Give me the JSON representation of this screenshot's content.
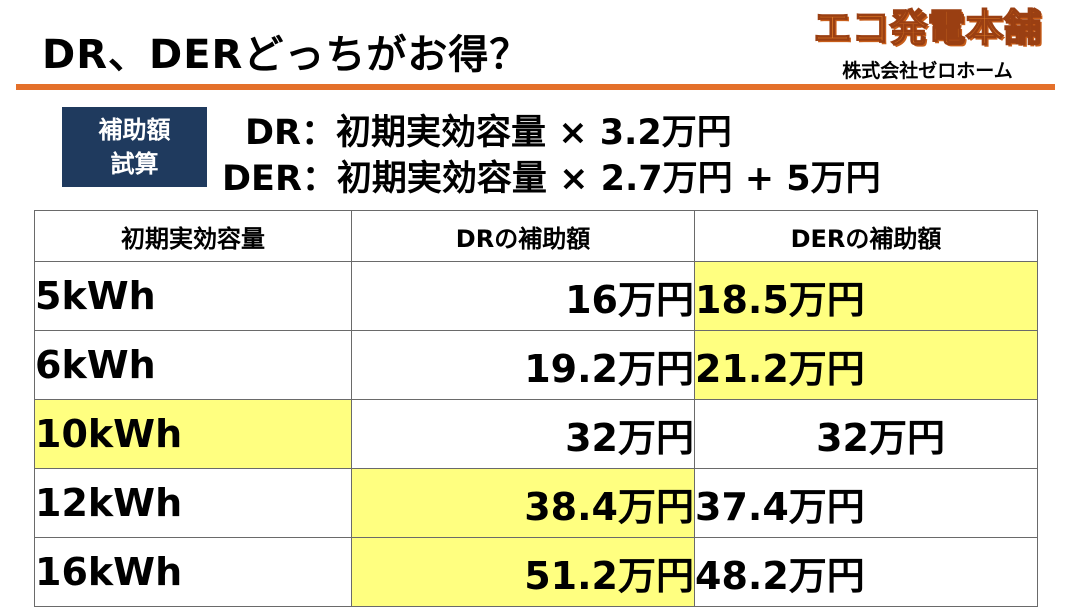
{
  "header": {
    "title": "DR、DERどっちがお得？",
    "logo_main": "エコ発電本舗",
    "logo_sub": "株式会社ゼロホーム"
  },
  "badge": {
    "line1": "補助額",
    "line2": "試算"
  },
  "formulas": {
    "dr": "DR：初期実効容量 × 3.2万円",
    "der": "DER：初期実効容量 × 2.7万円 + 5万円"
  },
  "table": {
    "headers": [
      "初期実効容量",
      "DRの補助額",
      "DERの補助額"
    ],
    "rows": [
      {
        "capacity": "5kWh",
        "dr": "16万円",
        "der": "18.5万円"
      },
      {
        "capacity": "6kWh",
        "dr": "19.2万円",
        "der": "21.2万円"
      },
      {
        "capacity": "10kWh",
        "dr": "32万円",
        "der": "32万円"
      },
      {
        "capacity": "12kWh",
        "dr": "38.4万円",
        "der": "37.4万円"
      },
      {
        "capacity": "16kWh",
        "dr": "51.2万円",
        "der": "48.2万円"
      }
    ]
  },
  "colors": {
    "accent_rule": "#e4702a",
    "badge_bg": "#1f3a5e",
    "highlight": "#ffff80",
    "logo": "#f08a2c"
  }
}
